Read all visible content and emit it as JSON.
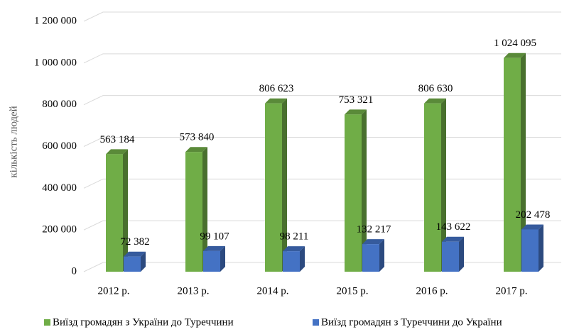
{
  "chart_data": {
    "type": "bar3d",
    "y_label": "кількість людей",
    "categories": [
      "2012 р.",
      "2013 р.",
      "2014 р.",
      "2015 р.",
      "2016 р.",
      "2017 р."
    ],
    "series": [
      {
        "name": "Виїзд громадян з України до Туреччини",
        "color": "#70ad47",
        "values": [
          563184,
          573840,
          806623,
          753321,
          806630,
          1024095
        ],
        "value_labels": [
          "563 184",
          "573 840",
          "806 623",
          "753 321",
          "806 630",
          "1 024 095"
        ]
      },
      {
        "name": "Виїзд громадян з Туреччини до України",
        "color": "#4472c4",
        "values": [
          72382,
          99107,
          98211,
          132217,
          143622,
          202478
        ],
        "value_labels": [
          "72 382",
          "99 107",
          "98 211",
          "132 217",
          "143 622",
          "202 478"
        ]
      }
    ],
    "ylim": [
      0,
      1200000
    ],
    "yticks": [
      0,
      {
        "value": 200000,
        "label": "200 000"
      },
      {
        "value": 400000,
        "label": "400 000"
      },
      {
        "value": 600000,
        "label": "600 000"
      },
      {
        "value": 800000,
        "label": "800 000"
      },
      {
        "value": 1000000,
        "label": "1 000 000"
      },
      {
        "value": 1200000,
        "label": "1 200 000"
      }
    ],
    "grid": true,
    "legend": "bottom"
  }
}
